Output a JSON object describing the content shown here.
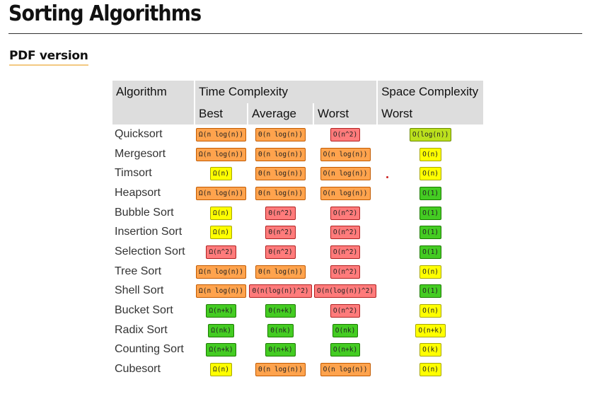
{
  "title": "Sorting Algorithms",
  "pdf_link": "PDF version",
  "colors": {
    "orange": "#ffa34d",
    "red": "#ff7b7b",
    "yellow": "#ffff00",
    "green": "#44cc22",
    "lime": "#bbe01d",
    "header_bg": "#dddddd"
  },
  "table": {
    "header": {
      "algorithm": "Algorithm",
      "time": "Time Complexity",
      "space": "Space Complexity",
      "best": "Best",
      "average": "Average",
      "worst": "Worst",
      "space_worst": "Worst"
    },
    "rows": [
      {
        "name": "Quicksort",
        "best": {
          "text": "Ω(n log(n))",
          "color": "orange"
        },
        "average": {
          "text": "Θ(n log(n))",
          "color": "orange"
        },
        "worst": {
          "text": "O(n^2)",
          "color": "red"
        },
        "space": {
          "text": "O(log(n))",
          "color": "lime"
        }
      },
      {
        "name": "Mergesort",
        "best": {
          "text": "Ω(n log(n))",
          "color": "orange"
        },
        "average": {
          "text": "Θ(n log(n))",
          "color": "orange"
        },
        "worst": {
          "text": "O(n log(n))",
          "color": "orange"
        },
        "space": {
          "text": "O(n)",
          "color": "yellow"
        }
      },
      {
        "name": "Timsort",
        "best": {
          "text": "Ω(n)",
          "color": "yellow"
        },
        "average": {
          "text": "Θ(n log(n))",
          "color": "orange"
        },
        "worst": {
          "text": "O(n log(n))",
          "color": "orange"
        },
        "space": {
          "text": "O(n)",
          "color": "yellow"
        }
      },
      {
        "name": "Heapsort",
        "best": {
          "text": "Ω(n log(n))",
          "color": "orange"
        },
        "average": {
          "text": "Θ(n log(n))",
          "color": "orange"
        },
        "worst": {
          "text": "O(n log(n))",
          "color": "orange"
        },
        "space": {
          "text": "O(1)",
          "color": "green"
        }
      },
      {
        "name": "Bubble Sort",
        "best": {
          "text": "Ω(n)",
          "color": "yellow"
        },
        "average": {
          "text": "Θ(n^2)",
          "color": "red"
        },
        "worst": {
          "text": "O(n^2)",
          "color": "red"
        },
        "space": {
          "text": "O(1)",
          "color": "green"
        }
      },
      {
        "name": "Insertion Sort",
        "best": {
          "text": "Ω(n)",
          "color": "yellow"
        },
        "average": {
          "text": "Θ(n^2)",
          "color": "red"
        },
        "worst": {
          "text": "O(n^2)",
          "color": "red"
        },
        "space": {
          "text": "O(1)",
          "color": "green"
        }
      },
      {
        "name": "Selection Sort",
        "best": {
          "text": "Ω(n^2)",
          "color": "red"
        },
        "average": {
          "text": "Θ(n^2)",
          "color": "red"
        },
        "worst": {
          "text": "O(n^2)",
          "color": "red"
        },
        "space": {
          "text": "O(1)",
          "color": "green"
        }
      },
      {
        "name": "Tree Sort",
        "best": {
          "text": "Ω(n log(n))",
          "color": "orange"
        },
        "average": {
          "text": "Θ(n log(n))",
          "color": "orange"
        },
        "worst": {
          "text": "O(n^2)",
          "color": "red"
        },
        "space": {
          "text": "O(n)",
          "color": "yellow"
        }
      },
      {
        "name": "Shell Sort",
        "best": {
          "text": "Ω(n log(n))",
          "color": "orange"
        },
        "average": {
          "text": "Θ(n(log(n))^2)",
          "color": "red"
        },
        "worst": {
          "text": "O(n(log(n))^2)",
          "color": "red"
        },
        "space": {
          "text": "O(1)",
          "color": "green"
        }
      },
      {
        "name": "Bucket Sort",
        "best": {
          "text": "Ω(n+k)",
          "color": "green"
        },
        "average": {
          "text": "Θ(n+k)",
          "color": "green"
        },
        "worst": {
          "text": "O(n^2)",
          "color": "red"
        },
        "space": {
          "text": "O(n)",
          "color": "yellow"
        }
      },
      {
        "name": "Radix Sort",
        "best": {
          "text": "Ω(nk)",
          "color": "green"
        },
        "average": {
          "text": "Θ(nk)",
          "color": "green"
        },
        "worst": {
          "text": "O(nk)",
          "color": "green"
        },
        "space": {
          "text": "O(n+k)",
          "color": "yellow"
        }
      },
      {
        "name": "Counting Sort",
        "best": {
          "text": "Ω(n+k)",
          "color": "green"
        },
        "average": {
          "text": "Θ(n+k)",
          "color": "green"
        },
        "worst": {
          "text": "O(n+k)",
          "color": "green"
        },
        "space": {
          "text": "O(k)",
          "color": "yellow"
        }
      },
      {
        "name": "Cubesort",
        "best": {
          "text": "Ω(n)",
          "color": "yellow"
        },
        "average": {
          "text": "Θ(n log(n))",
          "color": "orange"
        },
        "worst": {
          "text": "O(n log(n))",
          "color": "orange"
        },
        "space": {
          "text": "O(n)",
          "color": "yellow"
        }
      }
    ]
  }
}
